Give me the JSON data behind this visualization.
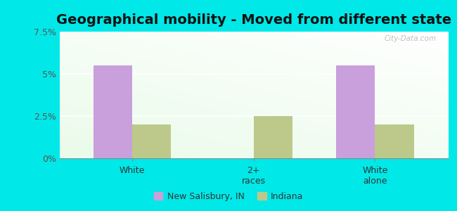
{
  "title": "Geographical mobility - Moved from different state",
  "categories": [
    "White",
    "2+\nraces",
    "White\nalone"
  ],
  "new_salisbury_values": [
    5.5,
    0.0,
    5.5
  ],
  "indiana_values": [
    2.0,
    2.5,
    2.0
  ],
  "ylim": [
    0,
    7.5
  ],
  "yticks": [
    0,
    2.5,
    5.0,
    7.5
  ],
  "ytick_labels": [
    "0%",
    "2.5%",
    "5%",
    "7.5%"
  ],
  "color_new_salisbury": "#c9a0dc",
  "color_indiana": "#bcc98a",
  "legend_label_1": "New Salisbury, IN",
  "legend_label_2": "Indiana",
  "background_outer": "#00e8e8",
  "bar_width": 0.32,
  "title_fontsize": 14,
  "watermark": "City-Data.com"
}
